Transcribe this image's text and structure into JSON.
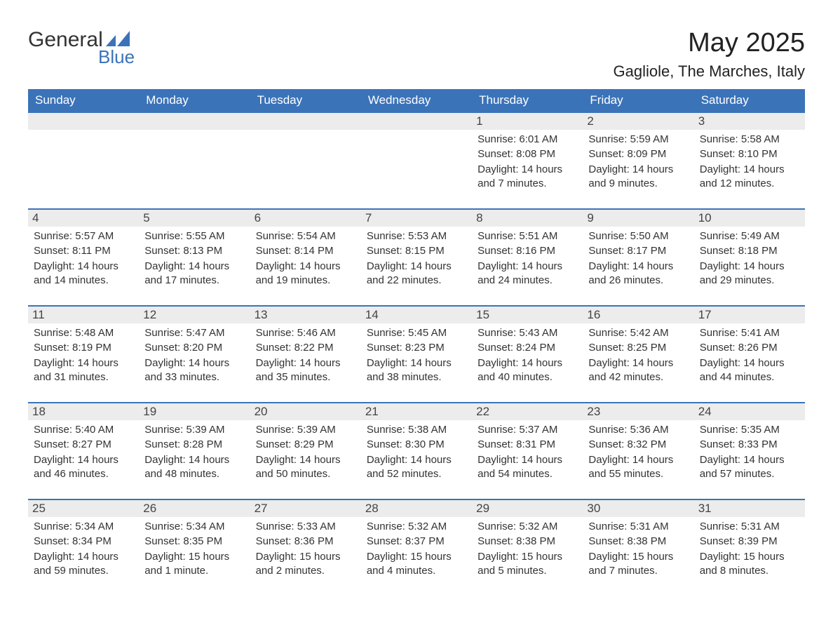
{
  "logo": {
    "text1": "General",
    "text2": "Blue"
  },
  "title": "May 2025",
  "location": "Gagliole, The Marches, Italy",
  "colors": {
    "header_bg": "#3b73b9",
    "header_text": "#ffffff",
    "row_border": "#3b73b9",
    "daynum_bg": "#ececec",
    "text": "#333333",
    "logo_blue": "#3b73b9"
  },
  "weekdays": [
    "Sunday",
    "Monday",
    "Tuesday",
    "Wednesday",
    "Thursday",
    "Friday",
    "Saturday"
  ],
  "weeks": [
    [
      null,
      null,
      null,
      null,
      {
        "n": "1",
        "sunrise": "6:01 AM",
        "sunset": "8:08 PM",
        "daylight": "14 hours and 7 minutes."
      },
      {
        "n": "2",
        "sunrise": "5:59 AM",
        "sunset": "8:09 PM",
        "daylight": "14 hours and 9 minutes."
      },
      {
        "n": "3",
        "sunrise": "5:58 AM",
        "sunset": "8:10 PM",
        "daylight": "14 hours and 12 minutes."
      }
    ],
    [
      {
        "n": "4",
        "sunrise": "5:57 AM",
        "sunset": "8:11 PM",
        "daylight": "14 hours and 14 minutes."
      },
      {
        "n": "5",
        "sunrise": "5:55 AM",
        "sunset": "8:13 PM",
        "daylight": "14 hours and 17 minutes."
      },
      {
        "n": "6",
        "sunrise": "5:54 AM",
        "sunset": "8:14 PM",
        "daylight": "14 hours and 19 minutes."
      },
      {
        "n": "7",
        "sunrise": "5:53 AM",
        "sunset": "8:15 PM",
        "daylight": "14 hours and 22 minutes."
      },
      {
        "n": "8",
        "sunrise": "5:51 AM",
        "sunset": "8:16 PM",
        "daylight": "14 hours and 24 minutes."
      },
      {
        "n": "9",
        "sunrise": "5:50 AM",
        "sunset": "8:17 PM",
        "daylight": "14 hours and 26 minutes."
      },
      {
        "n": "10",
        "sunrise": "5:49 AM",
        "sunset": "8:18 PM",
        "daylight": "14 hours and 29 minutes."
      }
    ],
    [
      {
        "n": "11",
        "sunrise": "5:48 AM",
        "sunset": "8:19 PM",
        "daylight": "14 hours and 31 minutes."
      },
      {
        "n": "12",
        "sunrise": "5:47 AM",
        "sunset": "8:20 PM",
        "daylight": "14 hours and 33 minutes."
      },
      {
        "n": "13",
        "sunrise": "5:46 AM",
        "sunset": "8:22 PM",
        "daylight": "14 hours and 35 minutes."
      },
      {
        "n": "14",
        "sunrise": "5:45 AM",
        "sunset": "8:23 PM",
        "daylight": "14 hours and 38 minutes."
      },
      {
        "n": "15",
        "sunrise": "5:43 AM",
        "sunset": "8:24 PM",
        "daylight": "14 hours and 40 minutes."
      },
      {
        "n": "16",
        "sunrise": "5:42 AM",
        "sunset": "8:25 PM",
        "daylight": "14 hours and 42 minutes."
      },
      {
        "n": "17",
        "sunrise": "5:41 AM",
        "sunset": "8:26 PM",
        "daylight": "14 hours and 44 minutes."
      }
    ],
    [
      {
        "n": "18",
        "sunrise": "5:40 AM",
        "sunset": "8:27 PM",
        "daylight": "14 hours and 46 minutes."
      },
      {
        "n": "19",
        "sunrise": "5:39 AM",
        "sunset": "8:28 PM",
        "daylight": "14 hours and 48 minutes."
      },
      {
        "n": "20",
        "sunrise": "5:39 AM",
        "sunset": "8:29 PM",
        "daylight": "14 hours and 50 minutes."
      },
      {
        "n": "21",
        "sunrise": "5:38 AM",
        "sunset": "8:30 PM",
        "daylight": "14 hours and 52 minutes."
      },
      {
        "n": "22",
        "sunrise": "5:37 AM",
        "sunset": "8:31 PM",
        "daylight": "14 hours and 54 minutes."
      },
      {
        "n": "23",
        "sunrise": "5:36 AM",
        "sunset": "8:32 PM",
        "daylight": "14 hours and 55 minutes."
      },
      {
        "n": "24",
        "sunrise": "5:35 AM",
        "sunset": "8:33 PM",
        "daylight": "14 hours and 57 minutes."
      }
    ],
    [
      {
        "n": "25",
        "sunrise": "5:34 AM",
        "sunset": "8:34 PM",
        "daylight": "14 hours and 59 minutes."
      },
      {
        "n": "26",
        "sunrise": "5:34 AM",
        "sunset": "8:35 PM",
        "daylight": "15 hours and 1 minute."
      },
      {
        "n": "27",
        "sunrise": "5:33 AM",
        "sunset": "8:36 PM",
        "daylight": "15 hours and 2 minutes."
      },
      {
        "n": "28",
        "sunrise": "5:32 AM",
        "sunset": "8:37 PM",
        "daylight": "15 hours and 4 minutes."
      },
      {
        "n": "29",
        "sunrise": "5:32 AM",
        "sunset": "8:38 PM",
        "daylight": "15 hours and 5 minutes."
      },
      {
        "n": "30",
        "sunrise": "5:31 AM",
        "sunset": "8:38 PM",
        "daylight": "15 hours and 7 minutes."
      },
      {
        "n": "31",
        "sunrise": "5:31 AM",
        "sunset": "8:39 PM",
        "daylight": "15 hours and 8 minutes."
      }
    ]
  ],
  "labels": {
    "sunrise": "Sunrise:",
    "sunset": "Sunset:",
    "daylight": "Daylight:"
  }
}
